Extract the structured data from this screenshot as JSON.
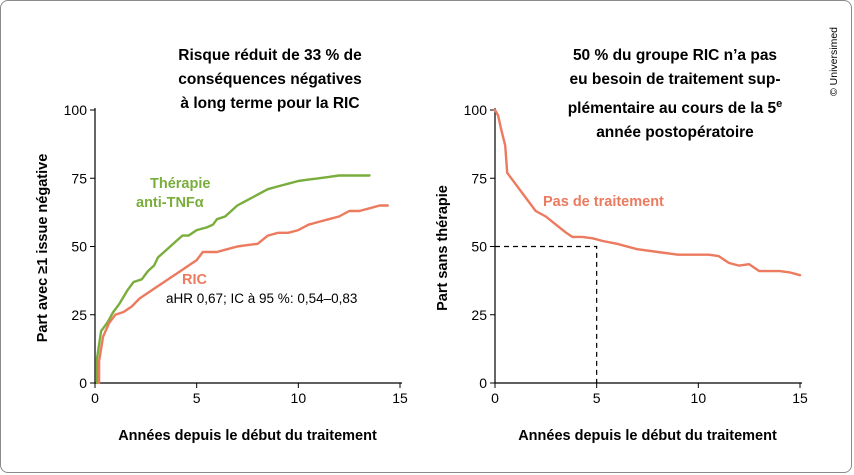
{
  "copyright": "© Universimed",
  "colors": {
    "tnf": "#79ad3c",
    "ric": "#ec7a5f",
    "axis": "#000000"
  },
  "chart_data": [
    {
      "type": "line",
      "title": [
        "Risque réduit de 33 % de",
        "conséquences négatives",
        "à long terme pour la RIC"
      ],
      "xlabel": "Années depuis le début du traitement",
      "ylabel": "Part avec ≥1 issue négative",
      "xlim": [
        0,
        15
      ],
      "ylim": [
        0,
        100
      ],
      "xticks": [
        "0",
        "5",
        "10",
        "15"
      ],
      "yticks": [
        "0",
        "25",
        "50",
        "75",
        "100"
      ],
      "legend": "none",
      "annotations": [
        {
          "id": "tnf_line1",
          "text": "Thérapie"
        },
        {
          "id": "tnf_line2",
          "text": "anti-TNFα"
        },
        {
          "id": "ric",
          "text": "RIC"
        },
        {
          "id": "hr",
          "text": "aHR 0,67; IC à 95 %: 0,54–0,83"
        }
      ],
      "series": [
        {
          "name": "Thérapie anti-TNFα",
          "points": [
            [
              0.1,
              0
            ],
            [
              0.1,
              9
            ],
            [
              0.3,
              19
            ],
            [
              0.6,
              22
            ],
            [
              0.9,
              26
            ],
            [
              1.2,
              29
            ],
            [
              1.6,
              34
            ],
            [
              1.9,
              37
            ],
            [
              2.3,
              38
            ],
            [
              2.6,
              41
            ],
            [
              2.9,
              43
            ],
            [
              3.1,
              46
            ],
            [
              3.4,
              48
            ],
            [
              3.7,
              50
            ],
            [
              4.0,
              52
            ],
            [
              4.3,
              54
            ],
            [
              4.6,
              54
            ],
            [
              5.0,
              56
            ],
            [
              5.5,
              57
            ],
            [
              5.8,
              58
            ],
            [
              6.0,
              60
            ],
            [
              6.4,
              61
            ],
            [
              6.7,
              63
            ],
            [
              7.0,
              65
            ],
            [
              7.5,
              67
            ],
            [
              8.0,
              69
            ],
            [
              8.5,
              71
            ],
            [
              9.0,
              72
            ],
            [
              9.5,
              73
            ],
            [
              10.0,
              74
            ],
            [
              10.5,
              74.5
            ],
            [
              11.0,
              75
            ],
            [
              11.5,
              75.5
            ],
            [
              12.0,
              76
            ],
            [
              13.0,
              76
            ],
            [
              13.5,
              76
            ]
          ]
        },
        {
          "name": "RIC",
          "points": [
            [
              0.2,
              0
            ],
            [
              0.2,
              8
            ],
            [
              0.4,
              17
            ],
            [
              0.7,
              22
            ],
            [
              1.0,
              25
            ],
            [
              1.4,
              26
            ],
            [
              1.8,
              28
            ],
            [
              2.2,
              31
            ],
            [
              2.6,
              33
            ],
            [
              3.0,
              35
            ],
            [
              3.4,
              37
            ],
            [
              3.8,
              39
            ],
            [
              4.2,
              41
            ],
            [
              4.6,
              43
            ],
            [
              5.0,
              45
            ],
            [
              5.3,
              48
            ],
            [
              5.7,
              48
            ],
            [
              6.0,
              48
            ],
            [
              6.5,
              49
            ],
            [
              7.0,
              50
            ],
            [
              7.5,
              50.5
            ],
            [
              8.0,
              51
            ],
            [
              8.5,
              54
            ],
            [
              9.0,
              55
            ],
            [
              9.5,
              55
            ],
            [
              10.0,
              56
            ],
            [
              10.5,
              58
            ],
            [
              11.0,
              59
            ],
            [
              11.5,
              60
            ],
            [
              12.0,
              61
            ],
            [
              12.5,
              63
            ],
            [
              13.0,
              63
            ],
            [
              13.5,
              64
            ],
            [
              14.0,
              65
            ],
            [
              14.4,
              65
            ]
          ]
        }
      ]
    },
    {
      "type": "line",
      "title": [
        "50 % du groupe RIC n’a pas",
        "eu besoin de traitement sup-",
        "plémentaire au cours de la 5",
        "année postopératoire"
      ],
      "title_superscript": "e",
      "xlabel": "Années depuis le début du traitement",
      "ylabel": "Part sans thérapie",
      "xlim": [
        0,
        15
      ],
      "ylim": [
        0,
        100
      ],
      "xticks": [
        "0",
        "5",
        "10",
        "15"
      ],
      "yticks": [
        "0",
        "25",
        "50",
        "75",
        "100"
      ],
      "legend": "none",
      "annotations": [
        {
          "id": "series",
          "text": "Pas de traitement"
        }
      ],
      "reference": {
        "x": 5,
        "y": 50
      },
      "series": [
        {
          "name": "Pas de traitement",
          "points": [
            [
              0,
              100
            ],
            [
              0.15,
              98
            ],
            [
              0.3,
              93
            ],
            [
              0.5,
              87
            ],
            [
              0.6,
              77
            ],
            [
              0.8,
              75
            ],
            [
              1.0,
              73
            ],
            [
              1.5,
              68
            ],
            [
              2.0,
              63
            ],
            [
              2.5,
              61
            ],
            [
              3.0,
              58
            ],
            [
              3.5,
              55
            ],
            [
              3.8,
              53.5
            ],
            [
              4.3,
              53.5
            ],
            [
              4.8,
              53
            ],
            [
              5.3,
              52
            ],
            [
              6.0,
              51
            ],
            [
              7.0,
              49
            ],
            [
              8.0,
              48
            ],
            [
              9.0,
              47
            ],
            [
              10.0,
              47
            ],
            [
              10.5,
              47
            ],
            [
              11.0,
              46.5
            ],
            [
              11.5,
              44
            ],
            [
              12.0,
              43
            ],
            [
              12.5,
              43.5
            ],
            [
              13.0,
              41
            ],
            [
              13.5,
              41
            ],
            [
              14.0,
              41
            ],
            [
              14.5,
              40.5
            ],
            [
              15.0,
              39.5
            ]
          ]
        }
      ]
    }
  ]
}
